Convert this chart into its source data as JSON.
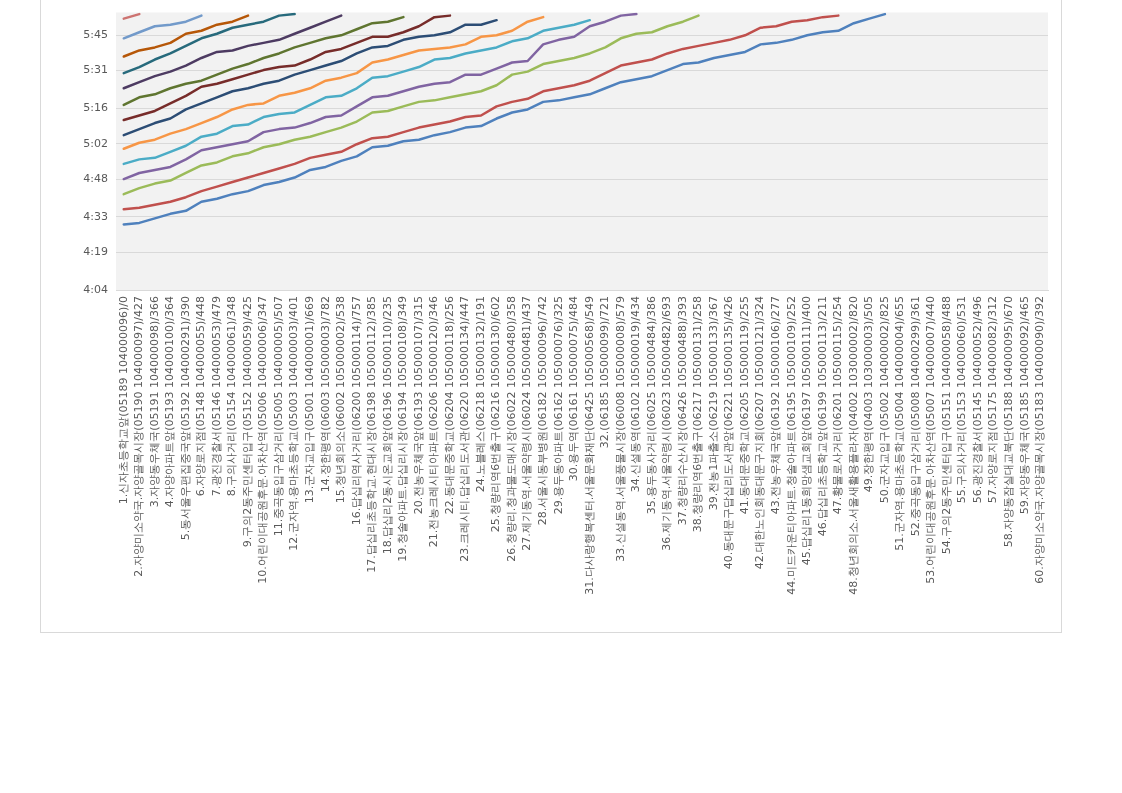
{
  "chart_data": {
    "type": "line",
    "categories": [
      "1.신자초등학교앞(05189 104000096)/0",
      "2.자양미소약국.자양골목시장(05190 104000097)/427",
      "3.자양동우체국(05191 104000098)/366",
      "4.자양아파트앞(05193 104000100)/364",
      "5.동서울우편집중국앞(05192 104000291)/390",
      "6.자양로지점(05148 104000055)/448",
      "7.광진경찰서(05146 104000053)/479",
      "8.구의사거리(05154 104000061)/348",
      "9.구의2동주민센터입구(05152 104000059)/425",
      "10.어린이대공원후문.아차산역(05006 104000006)/347",
      "11.중곡동입구삼거리(05005 104000005)/507",
      "12.군자역.용마초등학교(05003 104000003)/401",
      "13.군자교입구(05001 104000001)/669",
      "14.장한평역(06003 105000003)/782",
      "15.청년회의소(06002 105000002)/538",
      "16.답십리역사거리(06200 105000114)/757",
      "17.답십리초등학교.현대시장(06198 105000112)/385",
      "18.답십리2동시온교회앞(06196 105000110)/235",
      "19.청솔아파트.답십리시장(06194 105000108)/349",
      "20.전농우체국앞(06193 105000107)/315",
      "21.전농크레시티아파트(06206 105000120)/346",
      "22.동대문중학교(06204 105000118)/256",
      "23.크레시티.답십리도서관(06220 105000134)/447",
      "24.노블레스(06218 105000132)/191",
      "25.청량리역6번출구(06216 105000130)/602",
      "26.청량리.청과물도매시장(06022 105000480)/358",
      "27.제기동역.서울약령시(06024 105000481)/437",
      "28.서울시동부병원(06182 105000096)/742",
      "29.용두동아파트(06162 105000076)/325",
      "30.용두역(06161 105000075)/484",
      "31.다사랑행복센터.서울문화재단(06425 105000568)/549",
      "32.(06185 105000099)/721",
      "33.신설동역.서울풍물시장(06008 105000008)/579",
      "34.신설동역(06102 105000019)/434",
      "35.용두동사거리(06025 105000484)/386",
      "36.제기동역.서울약령시(06023 105000482)/693",
      "37.청량리수산시장(06426 105000488)/393",
      "38.청량리역6번출구(06217 105000131)/258",
      "39.전농1파출소(06219 105000133)/367",
      "40.동대문구답십리도서관앞(06221 105000135)/426",
      "41.동대문중학교(06205 105000119)/255",
      "42.대한노인회동대문구지회(06207 105000121)/324",
      "43.전농우체국앞(06192 105000106)/277",
      "44.미드카운티아파트.청솔아파트(06195 105000109)/252",
      "45.답십리1동희망샘교회앞(06197 105000111)/400",
      "46.답십리초등학교앞(06199 105000113)/211",
      "47.황물로사거리(06201 105000115)/254",
      "48.청년회의소.서울새활용플라자(04002 103000002)/820",
      "49.장한평역(04003 103000003)/505",
      "50.군자교입구(05002 104000002)/825",
      "51.군자역.용마초등학교(05004 104000004)/655",
      "52.중곡동입구삼거리(05008 104000299)/361",
      "53.어린이대공원후문.아차산역(05007 104000007)/440",
      "54.구의2동주민센터입구(05151 104000058)/488",
      "55.구의사거리(05153 104000060)/531",
      "56.광진경찰서(05145 104000052)/496",
      "57.자양로지점(05175 104000082)/312",
      "58.자양동잠실대교북단(05188 104000095)/670",
      "59.자양동우체국(05185 104000092)/465",
      "60.자양미소약국.자양골목시장(05183 104000090)/392"
    ],
    "ylim": [
      4.0667,
      5.9
    ],
    "yticks": [
      {
        "value": 4.0667,
        "label": "4:04"
      },
      {
        "value": 4.3167,
        "label": "4:19"
      },
      {
        "value": 4.55,
        "label": "4:33"
      },
      {
        "value": 4.8,
        "label": "4:48"
      },
      {
        "value": 5.0333,
        "label": "5:02"
      },
      {
        "value": 5.2667,
        "label": "5:16"
      },
      {
        "value": 5.5167,
        "label": "5:31"
      },
      {
        "value": 5.75,
        "label": "5:45"
      }
    ],
    "grid": "y",
    "marker": "none",
    "line_style": "solid",
    "series": [
      {
        "color": "#4f81bd",
        "values": [
          4.5,
          4.51,
          4.54,
          4.57,
          4.59,
          4.65,
          4.67,
          4.7,
          4.72,
          4.76,
          4.78,
          4.81,
          4.86,
          4.88,
          4.92,
          4.95,
          5.01,
          5.02,
          5.05,
          5.06,
          5.09,
          5.11,
          5.14,
          5.15,
          5.2,
          5.24,
          5.26,
          5.31,
          5.32,
          5.34,
          5.36,
          5.4,
          5.44,
          5.46,
          5.48,
          5.52,
          5.56,
          5.57,
          5.6,
          5.62,
          5.64,
          5.69,
          5.7,
          5.72,
          5.75,
          5.77,
          5.78,
          5.83,
          5.86,
          5.89,
          null,
          null,
          null,
          null,
          null,
          null,
          null,
          null,
          null,
          null
        ]
      },
      {
        "color": "#c0504d",
        "values": [
          4.6,
          4.61,
          4.63,
          4.65,
          4.68,
          4.72,
          4.75,
          4.78,
          4.81,
          4.84,
          4.87,
          4.9,
          4.94,
          4.96,
          4.98,
          5.03,
          5.07,
          5.08,
          5.11,
          5.14,
          5.16,
          5.18,
          5.21,
          5.22,
          5.28,
          5.31,
          5.33,
          5.38,
          5.4,
          5.42,
          5.45,
          5.5,
          5.55,
          5.57,
          5.59,
          5.63,
          5.66,
          5.68,
          5.7,
          5.72,
          5.75,
          5.8,
          5.81,
          5.84,
          5.85,
          5.87,
          5.88,
          null,
          null,
          null,
          null,
          null,
          null,
          null,
          null,
          null,
          null,
          null,
          null,
          null
        ]
      },
      {
        "color": "#9bbb59",
        "values": [
          4.7,
          4.74,
          4.77,
          4.79,
          4.84,
          4.89,
          4.91,
          4.95,
          4.97,
          5.01,
          5.03,
          5.06,
          5.08,
          5.11,
          5.14,
          5.18,
          5.24,
          5.25,
          5.28,
          5.31,
          5.32,
          5.34,
          5.36,
          5.38,
          5.42,
          5.49,
          5.51,
          5.56,
          5.58,
          5.6,
          5.63,
          5.67,
          5.73,
          5.76,
          5.77,
          5.81,
          5.84,
          5.88,
          null,
          null,
          null,
          null,
          null,
          null,
          null,
          null,
          null,
          null,
          null,
          null,
          null,
          null,
          null,
          null,
          null,
          null,
          null,
          null,
          null,
          null
        ]
      },
      {
        "color": "#8064a2",
        "values": [
          4.8,
          4.84,
          4.86,
          4.88,
          4.93,
          4.99,
          5.01,
          5.03,
          5.05,
          5.11,
          5.13,
          5.14,
          5.17,
          5.21,
          5.22,
          5.28,
          5.34,
          5.35,
          5.38,
          5.41,
          5.43,
          5.44,
          5.49,
          5.49,
          5.53,
          5.57,
          5.58,
          5.69,
          5.72,
          5.74,
          5.81,
          5.84,
          5.88,
          5.89,
          null,
          null,
          null,
          null,
          null,
          null,
          null,
          null,
          null,
          null,
          null,
          null,
          null,
          null,
          null,
          null,
          null,
          null,
          null,
          null,
          null,
          null,
          null,
          null,
          null,
          null
        ]
      },
      {
        "color": "#4bacc6",
        "values": [
          4.9,
          4.93,
          4.94,
          4.98,
          5.02,
          5.08,
          5.1,
          5.15,
          5.16,
          5.21,
          5.23,
          5.24,
          5.29,
          5.34,
          5.35,
          5.4,
          5.47,
          5.48,
          5.51,
          5.54,
          5.59,
          5.6,
          5.63,
          5.65,
          5.67,
          5.71,
          5.73,
          5.78,
          5.8,
          5.82,
          5.85,
          null,
          null,
          null,
          null,
          null,
          null,
          null,
          null,
          null,
          null,
          null,
          null,
          null,
          null,
          null,
          null,
          null,
          null,
          null,
          null,
          null,
          null,
          null,
          null,
          null,
          null,
          null,
          null,
          null
        ]
      },
      {
        "color": "#f79646",
        "values": [
          5.0,
          5.04,
          5.06,
          5.1,
          5.13,
          5.17,
          5.21,
          5.26,
          5.29,
          5.3,
          5.35,
          5.37,
          5.4,
          5.45,
          5.47,
          5.5,
          5.57,
          5.59,
          5.62,
          5.65,
          5.66,
          5.67,
          5.69,
          5.74,
          5.75,
          5.78,
          5.84,
          5.87,
          null,
          null,
          null,
          null,
          null,
          null,
          null,
          null,
          null,
          null,
          null,
          null,
          null,
          null,
          null,
          null,
          null,
          null,
          null,
          null,
          null,
          null,
          null,
          null,
          null,
          null,
          null,
          null,
          null,
          null,
          null,
          null
        ]
      },
      {
        "color": "#2c4d75",
        "values": [
          5.09,
          5.13,
          5.17,
          5.2,
          5.26,
          5.3,
          5.34,
          5.38,
          5.4,
          5.43,
          5.45,
          5.49,
          5.52,
          5.55,
          5.58,
          5.63,
          5.67,
          5.68,
          5.72,
          5.74,
          5.75,
          5.77,
          5.82,
          5.82,
          5.85,
          null,
          null,
          null,
          null,
          null,
          null,
          null,
          null,
          null,
          null,
          null,
          null,
          null,
          null,
          null,
          null,
          null,
          null,
          null,
          null,
          null,
          null,
          null,
          null,
          null,
          null,
          null,
          null,
          null,
          null,
          null,
          null,
          null,
          null,
          null
        ]
      },
      {
        "color": "#772c2a",
        "values": [
          5.19,
          5.22,
          5.25,
          5.3,
          5.35,
          5.41,
          5.43,
          5.46,
          5.49,
          5.52,
          5.54,
          5.55,
          5.59,
          5.64,
          5.66,
          5.7,
          5.74,
          5.74,
          5.77,
          5.81,
          5.87,
          5.88,
          null,
          null,
          null,
          null,
          null,
          null,
          null,
          null,
          null,
          null,
          null,
          null,
          null,
          null,
          null,
          null,
          null,
          null,
          null,
          null,
          null,
          null,
          null,
          null,
          null,
          null,
          null,
          null,
          null,
          null,
          null,
          null,
          null,
          null,
          null,
          null,
          null,
          null
        ]
      },
      {
        "color": "#5f7530",
        "values": [
          5.29,
          5.34,
          5.36,
          5.4,
          5.43,
          5.45,
          5.49,
          5.53,
          5.56,
          5.6,
          5.63,
          5.67,
          5.7,
          5.73,
          5.75,
          5.79,
          5.83,
          5.84,
          5.87,
          null,
          null,
          null,
          null,
          null,
          null,
          null,
          null,
          null,
          null,
          null,
          null,
          null,
          null,
          null,
          null,
          null,
          null,
          null,
          null,
          null,
          null,
          null,
          null,
          null,
          null,
          null,
          null,
          null,
          null,
          null,
          null,
          null,
          null,
          null,
          null,
          null,
          null,
          null,
          null,
          null
        ]
      },
      {
        "color": "#4d3b62",
        "values": [
          5.4,
          5.44,
          5.48,
          5.51,
          5.55,
          5.6,
          5.64,
          5.65,
          5.68,
          5.7,
          5.72,
          5.76,
          5.8,
          5.84,
          5.88,
          null,
          null,
          null,
          null,
          null,
          null,
          null,
          null,
          null,
          null,
          null,
          null,
          null,
          null,
          null,
          null,
          null,
          null,
          null,
          null,
          null,
          null,
          null,
          null,
          null,
          null,
          null,
          null,
          null,
          null,
          null,
          null,
          null,
          null,
          null,
          null,
          null,
          null,
          null,
          null,
          null,
          null,
          null,
          null,
          null
        ]
      },
      {
        "color": "#276a7c",
        "values": [
          5.5,
          5.54,
          5.59,
          5.63,
          5.68,
          5.73,
          5.76,
          5.8,
          5.82,
          5.84,
          5.88,
          5.89,
          null,
          null,
          null,
          null,
          null,
          null,
          null,
          null,
          null,
          null,
          null,
          null,
          null,
          null,
          null,
          null,
          null,
          null,
          null,
          null,
          null,
          null,
          null,
          null,
          null,
          null,
          null,
          null,
          null,
          null,
          null,
          null,
          null,
          null,
          null,
          null,
          null,
          null,
          null,
          null,
          null,
          null,
          null,
          null,
          null,
          null,
          null,
          null
        ]
      },
      {
        "color": "#b65708",
        "values": [
          5.61,
          5.65,
          5.67,
          5.7,
          5.76,
          5.78,
          5.82,
          5.84,
          5.88,
          null,
          null,
          null,
          null,
          null,
          null,
          null,
          null,
          null,
          null,
          null,
          null,
          null,
          null,
          null,
          null,
          null,
          null,
          null,
          null,
          null,
          null,
          null,
          null,
          null,
          null,
          null,
          null,
          null,
          null,
          null,
          null,
          null,
          null,
          null,
          null,
          null,
          null,
          null,
          null,
          null,
          null,
          null,
          null,
          null,
          null,
          null,
          null,
          null,
          null,
          null
        ]
      },
      {
        "color": "#729aca",
        "values": [
          5.73,
          5.77,
          5.81,
          5.82,
          5.84,
          5.88,
          null,
          null,
          null,
          null,
          null,
          null,
          null,
          null,
          null,
          null,
          null,
          null,
          null,
          null,
          null,
          null,
          null,
          null,
          null,
          null,
          null,
          null,
          null,
          null,
          null,
          null,
          null,
          null,
          null,
          null,
          null,
          null,
          null,
          null,
          null,
          null,
          null,
          null,
          null,
          null,
          null,
          null,
          null,
          null,
          null,
          null,
          null,
          null,
          null,
          null,
          null,
          null,
          null,
          null
        ]
      },
      {
        "color": "#cd7371",
        "values": [
          5.86,
          5.89,
          null,
          null,
          null,
          null,
          null,
          null,
          null,
          null,
          null,
          null,
          null,
          null,
          null,
          null,
          null,
          null,
          null,
          null,
          null,
          null,
          null,
          null,
          null,
          null,
          null,
          null,
          null,
          null,
          null,
          null,
          null,
          null,
          null,
          null,
          null,
          null,
          null,
          null,
          null,
          null,
          null,
          null,
          null,
          null,
          null,
          null,
          null,
          null,
          null,
          null,
          null,
          null,
          null,
          null,
          null,
          null,
          null,
          null
        ]
      }
    ]
  }
}
